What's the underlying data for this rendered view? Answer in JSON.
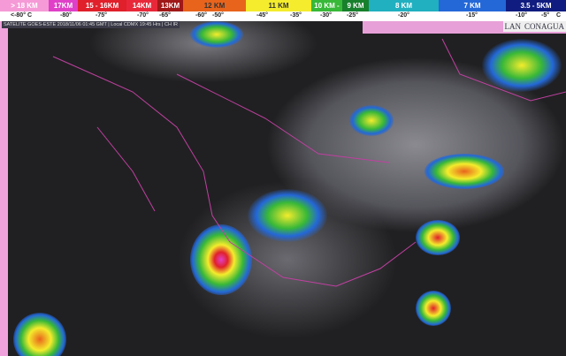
{
  "legend": [
    {
      "label": "> 18 KM",
      "color": "#f59ad6"
    },
    {
      "label": "17KM",
      "color": "#e040c8"
    },
    {
      "label": "15 - 16KM",
      "color": "#e0202a"
    },
    {
      "label": "14KM",
      "color": "#e8283a"
    },
    {
      "label": "13KM",
      "color": "#a01818"
    },
    {
      "label": "12 KM",
      "color": "#e8641c"
    },
    {
      "label": "11 KM",
      "color": "#f4ec2c"
    },
    {
      "label": "10 KM -",
      "color": "#38b838"
    },
    {
      "label": "9 KM",
      "color": "#18802c"
    },
    {
      "label": "8 KM",
      "color": "#20b0c0"
    },
    {
      "label": "7 KM",
      "color": "#2468d8"
    },
    {
      "label": "3.5 - 5KM",
      "color": "#101c80"
    }
  ],
  "temperatures": [
    "<-80° C",
    "-80°",
    "-75°",
    "-70°",
    "-65°",
    "-60°",
    "-50°",
    "-45°",
    "-35°",
    "-30°",
    "-25°",
    "-20°",
    "-15°",
    "-10°",
    "-5°",
    "C"
  ],
  "caption": "SATELITE GOES-ESTE 2018/11/06 01:45 GMT | Local CDMX 19:45 Hrs | CH IR",
  "logos": {
    "lan": "LAN",
    "conagua": "CONAGUA"
  }
}
